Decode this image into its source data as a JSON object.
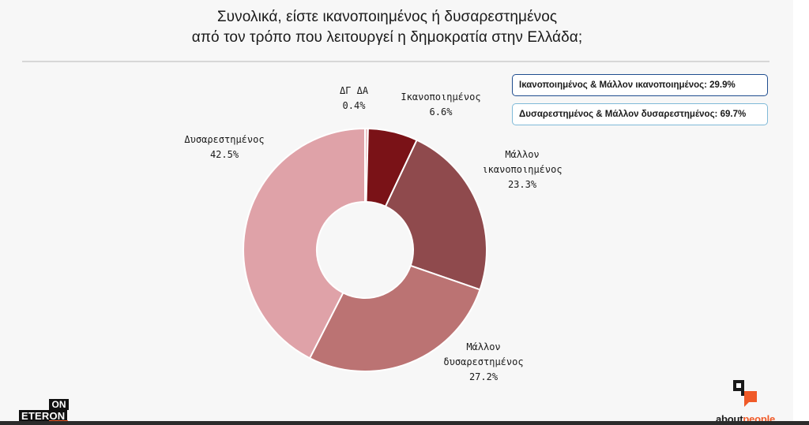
{
  "title": {
    "line1": "Συνολικά, είστε ικανοποιημένος ή δυσαρεστημένος",
    "line2": "από τον τρόπο που λειτουργεί η δημοκρατία στην Ελλάδα;"
  },
  "summary": {
    "satisfied": "Ικανοποιημένος & Μάλλον ικανοποιημένος: 29.9%",
    "dissatisfied": "Δυσαρεστημένος & Μάλλον δυσαρεστημένος: 69.7%"
  },
  "branding": {
    "on": "ON",
    "eteron": "ETERON",
    "about": "about",
    "people": "people"
  },
  "chart_data": {
    "type": "pie",
    "donut": true,
    "categories": [
      "ΔΓ ΔΑ",
      "Ικανοποιημένος",
      "Μάλλον ικανοποιημένος",
      "Μάλλον δυσαρεστημένος",
      "Δυσαρεστημένος"
    ],
    "values": [
      0.4,
      6.6,
      23.3,
      27.2,
      42.5
    ],
    "value_labels": [
      "0.4%",
      "6.6%",
      "23.3%",
      "27.2%",
      "42.5%"
    ],
    "label_lines": [
      [
        "ΔΓ ΔΑ"
      ],
      [
        "Ικανοποιημένος"
      ],
      [
        "Μάλλον",
        "ικανοποιημένος"
      ],
      [
        "Μάλλον",
        "δυσαρεστημένος"
      ],
      [
        "Δυσαρεστημένος"
      ]
    ],
    "colors": [
      "#e8b9bd",
      "#7a1217",
      "#8f4a4d",
      "#bb7373",
      "#dfa2a8"
    ],
    "start": "12 o'clock",
    "direction": "clockwise"
  }
}
